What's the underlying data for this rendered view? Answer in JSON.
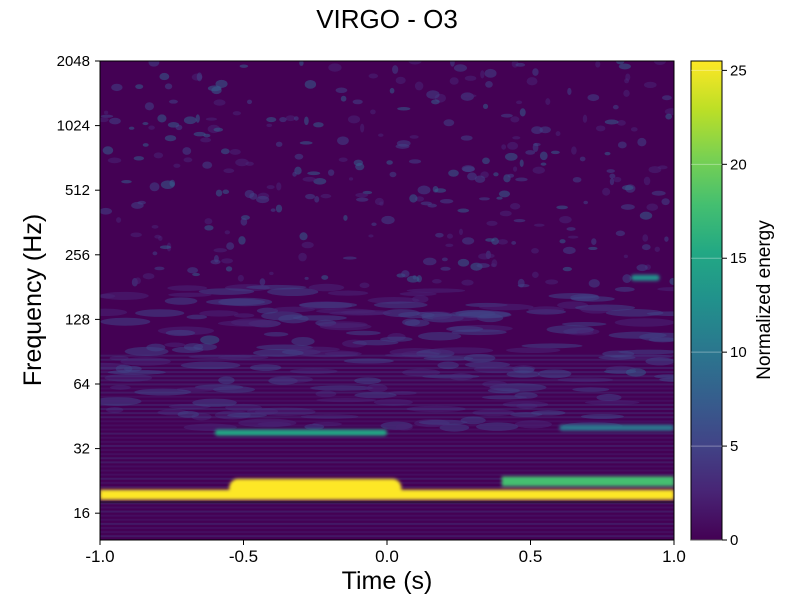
{
  "chart_data": {
    "type": "heatmap",
    "title": "VIRGO - O3",
    "xlabel": "Time (s)",
    "ylabel": "Frequency (Hz)",
    "xlim": [
      -1.0,
      1.0
    ],
    "x_ticks": [
      -1.0,
      -0.5,
      0.0,
      0.5,
      1.0
    ],
    "x_tick_labels": [
      "-1.0",
      "-0.5",
      "0.0",
      "0.5",
      "1.0"
    ],
    "ylim": [
      12,
      2048
    ],
    "yscale": "log2",
    "y_ticks": [
      16,
      32,
      64,
      128,
      256,
      512,
      1024,
      2048
    ],
    "y_tick_labels": [
      "16",
      "32",
      "64",
      "128",
      "256",
      "512",
      "1024",
      "2048"
    ],
    "colorbar": {
      "label": "Normalized energy",
      "range": [
        0,
        25.5
      ],
      "ticks": [
        0,
        5,
        10,
        15,
        20,
        25
      ],
      "tick_labels": [
        "0",
        "5",
        "10",
        "15",
        "20",
        "25"
      ],
      "colormap": "viridis"
    },
    "features": [
      {
        "freq": 19.5,
        "t_start": -1.0,
        "t_end": 1.0,
        "energy": 25
      },
      {
        "freq": 21,
        "t_start": -0.55,
        "t_end": 0.05,
        "energy": 25
      },
      {
        "freq": 22.5,
        "t_start": 0.4,
        "t_end": 1.0,
        "energy": 18
      },
      {
        "freq": 38,
        "t_start": -0.6,
        "t_end": 0.0,
        "energy": 15
      },
      {
        "freq": 40,
        "t_start": 0.6,
        "t_end": 1.0,
        "energy": 9
      },
      {
        "freq": 200,
        "t_start": 0.85,
        "t_end": 0.95,
        "energy": 12
      }
    ]
  },
  "colors": {
    "viridis_dark": "#440154",
    "viridis_mid": "#21918c",
    "viridis_bright": "#fde725"
  }
}
